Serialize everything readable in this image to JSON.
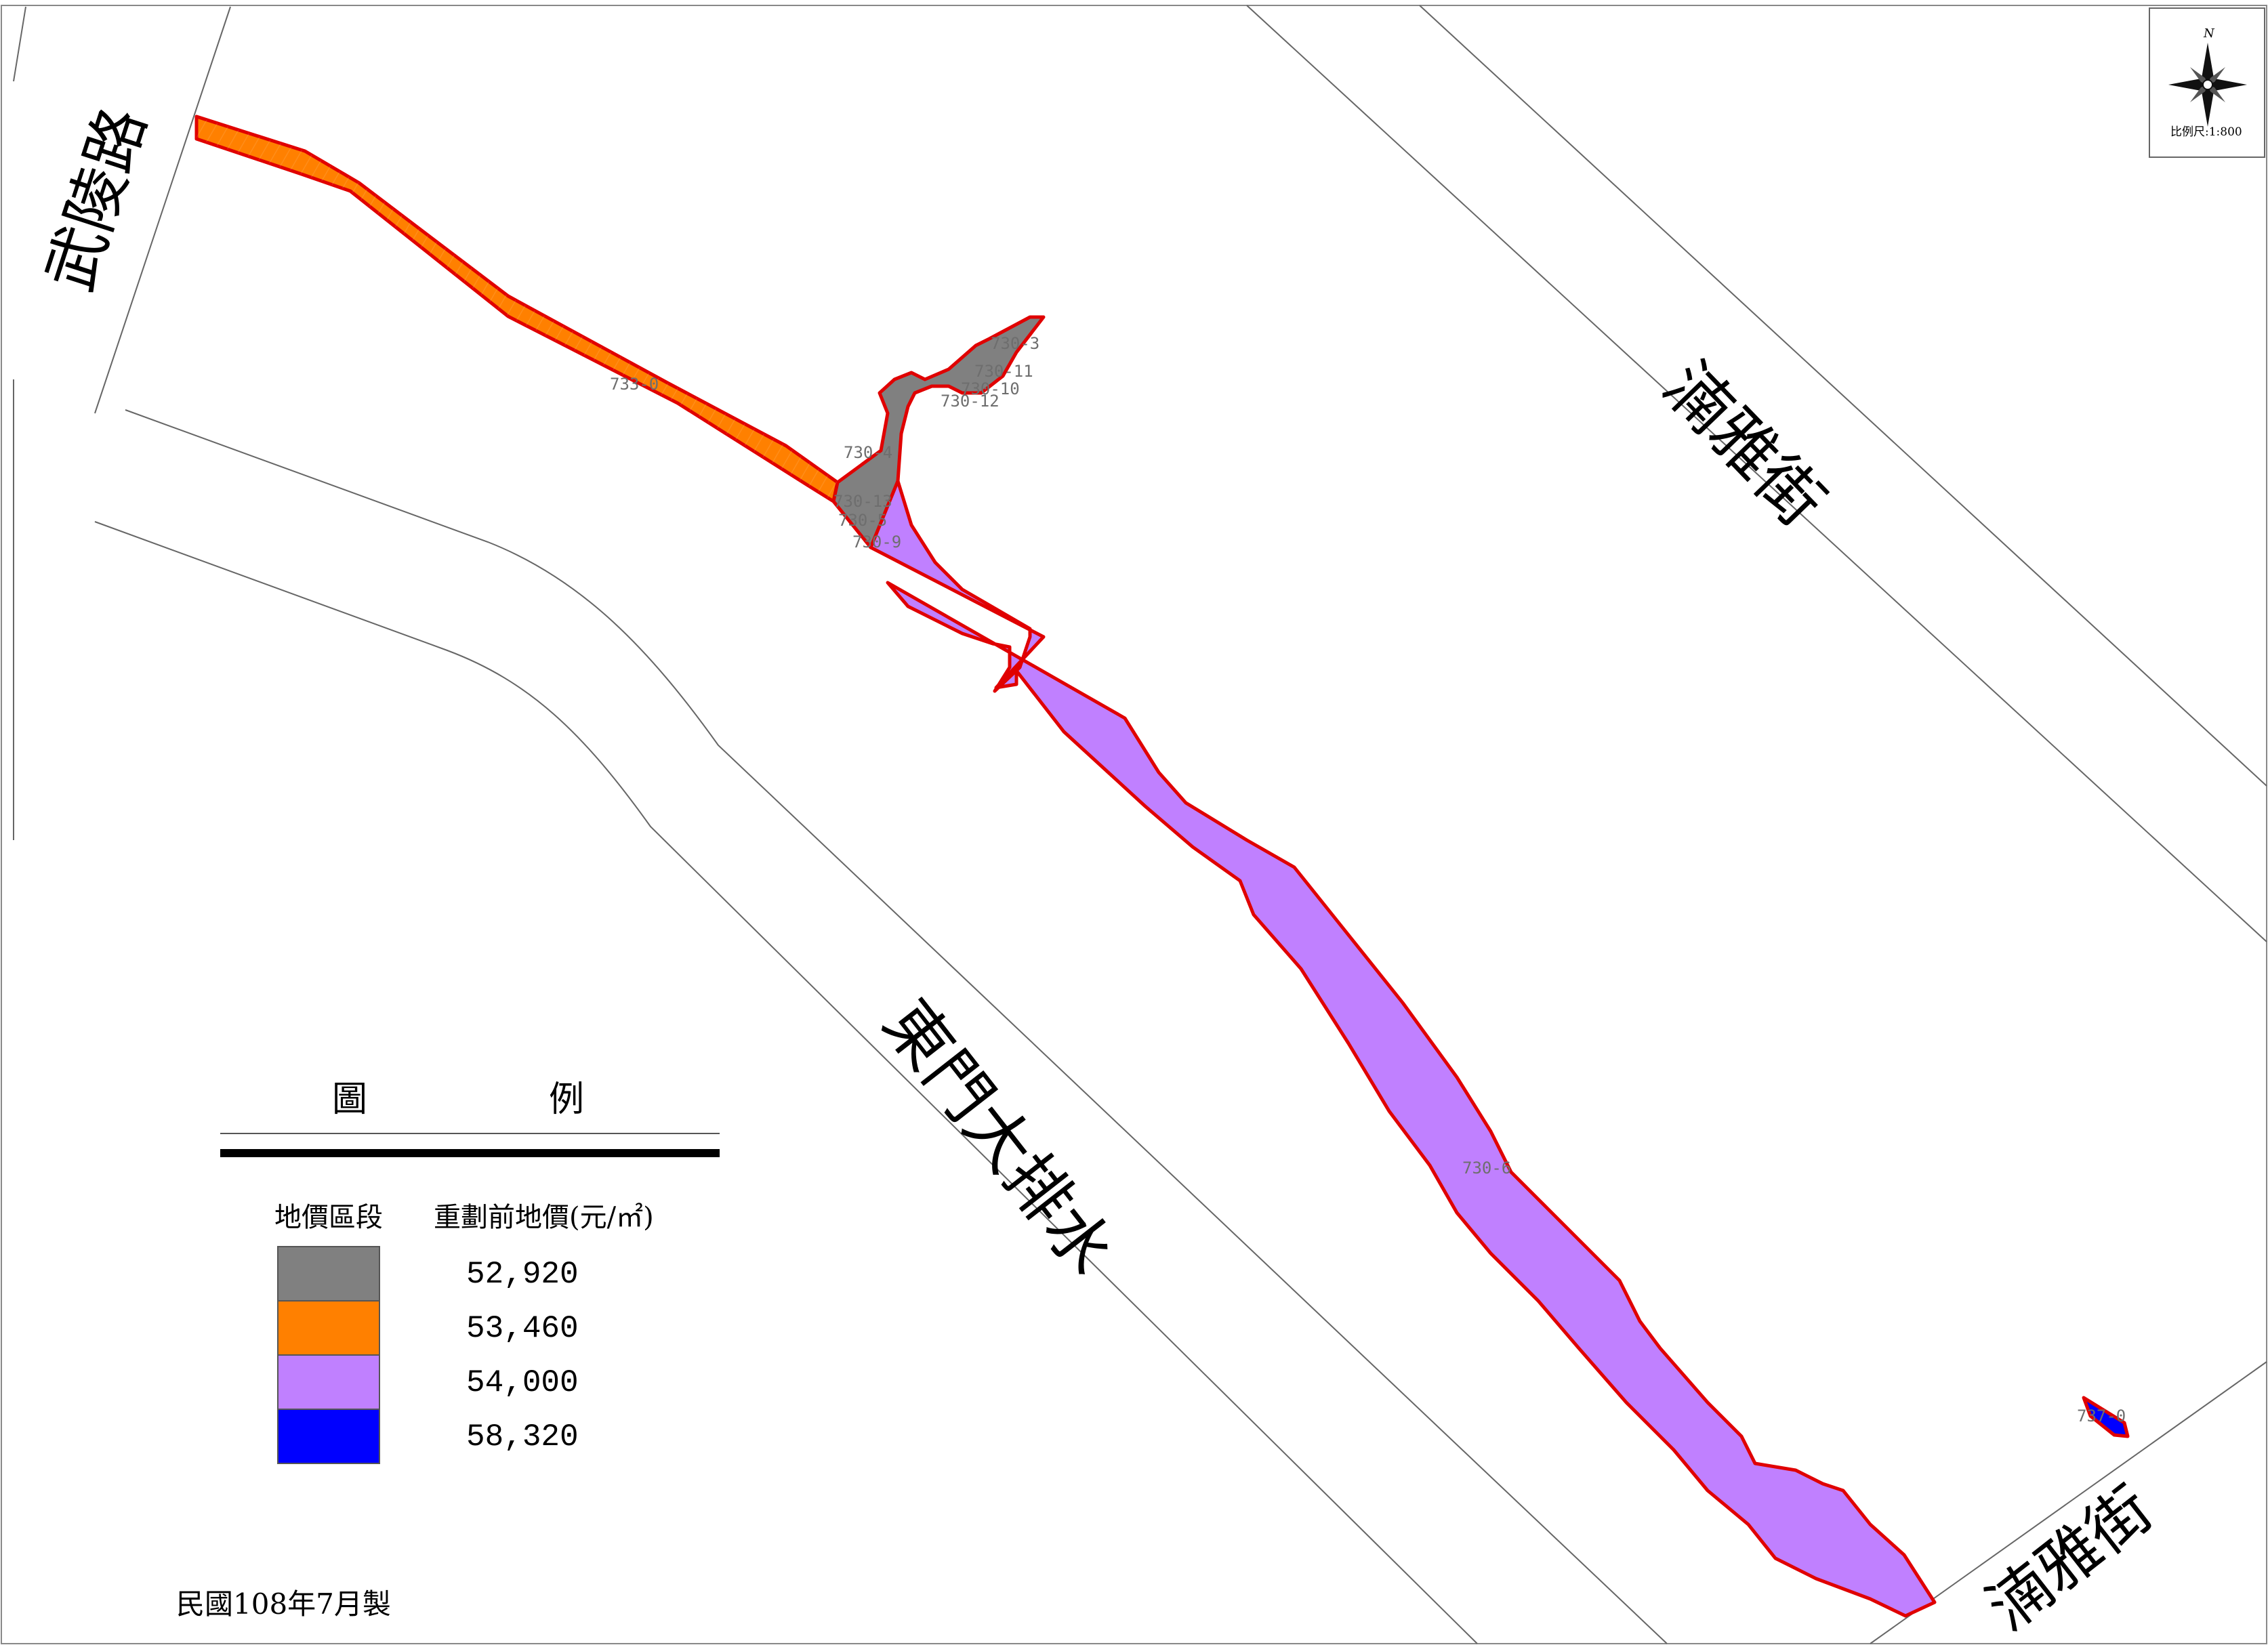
{
  "roads": {
    "wuling": "武陵路",
    "nanya_top": "湳雅街",
    "nanya_bottom": "湳雅街",
    "dongmen": "東門大排水"
  },
  "parcels": [
    {
      "id": "733-0",
      "zone": "53,460"
    },
    {
      "id": "730-3",
      "zone": "52,920"
    },
    {
      "id": "730-11",
      "zone": "52,920"
    },
    {
      "id": "730-10",
      "zone": "52,920"
    },
    {
      "id": "730-12",
      "zone": "52,920"
    },
    {
      "id": "730-4",
      "zone": "52,920"
    },
    {
      "id": "730-13",
      "zone": "52,920"
    },
    {
      "id": "730-5",
      "zone": "52,920"
    },
    {
      "id": "730-9",
      "zone": "54,000"
    },
    {
      "id": "730-6",
      "zone": "54,000"
    },
    {
      "id": "737-0",
      "zone": "58,320"
    }
  ],
  "compass": {
    "north": "N",
    "scale": "比例尺:1:800"
  },
  "legend": {
    "title_left": "圖",
    "title_right": "例",
    "col1": "地價區段",
    "col2": "重劃前地價(元/㎡)",
    "items": [
      {
        "value": "52,920",
        "color": "#808080"
      },
      {
        "value": "53,460",
        "color": "#ff8000"
      },
      {
        "value": "54,000",
        "color": "#c080ff"
      },
      {
        "value": "58,320",
        "color": "#0000ff"
      }
    ]
  },
  "footer": "民國108年7月製",
  "colors": {
    "boundary": "#e00000",
    "road_line": "#666666"
  }
}
